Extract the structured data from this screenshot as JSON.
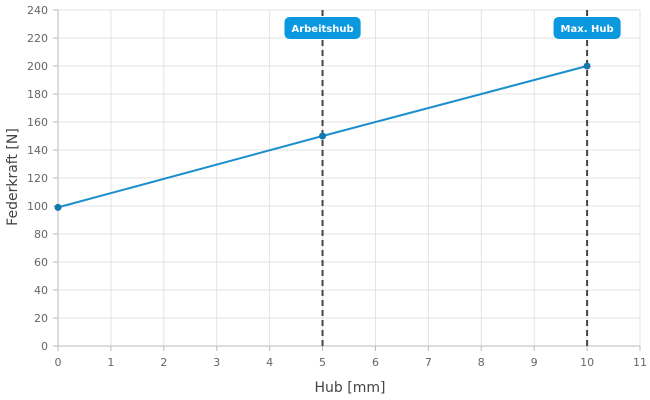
{
  "chart_data": {
    "type": "line",
    "xlabel": "Hub [mm]",
    "ylabel": "Federkraft [N]",
    "xlim": [
      0,
      11
    ],
    "ylim": [
      0,
      240
    ],
    "x_ticks": [
      0,
      1,
      2,
      3,
      4,
      5,
      6,
      7,
      8,
      9,
      10,
      11
    ],
    "y_ticks": [
      0,
      20,
      40,
      60,
      80,
      100,
      120,
      140,
      160,
      180,
      200,
      220,
      240
    ],
    "grid": true,
    "series": [
      {
        "x": [
          0,
          5,
          10
        ],
        "y": [
          99,
          150,
          200
        ],
        "color": "#1a8fcc"
      }
    ],
    "markers": [
      {
        "label": "Arbeitshub",
        "x": 5
      },
      {
        "label": "Max. Hub",
        "x": 10
      }
    ],
    "colors": {
      "line": "#1a8fcc",
      "point": "#1477ad",
      "badge": "#0b98de",
      "marker_line": "#444444",
      "grid": "#e3e3e3"
    }
  }
}
